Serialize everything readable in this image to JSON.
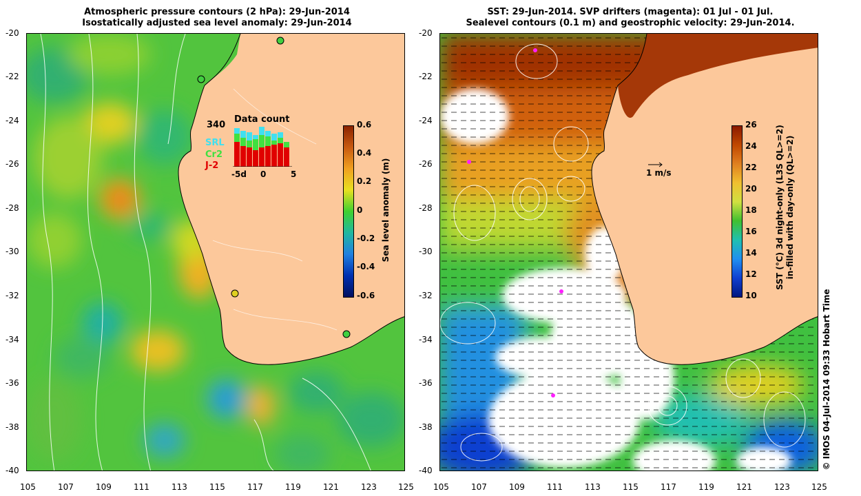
{
  "left_panel": {
    "title_line1": "Atmospheric pressure contours (2 hPa): 29-Jun-2014",
    "title_line2": "Isostatically adjusted sea level anomaly: 29-Jun-2014",
    "colorbar": {
      "label": "Sea level anomaly (m)",
      "ticks": [
        "0.6",
        "0.4",
        "0.2",
        "0",
        "-0.2",
        "-0.4",
        "-0.6"
      ],
      "colors": [
        "#8b2300",
        "#c85a10",
        "#f0a020",
        "#e8e020",
        "#40d030",
        "#20b8a0",
        "#2080e0",
        "#0030b0",
        "#001060"
      ]
    },
    "data_count": {
      "title": "Data count",
      "total": "340",
      "legend": [
        {
          "name": "SRL",
          "color": "#40e0f0"
        },
        {
          "name": "Cr2",
          "color": "#40e040"
        },
        {
          "name": "J-2",
          "color": "#e00000"
        }
      ],
      "x_ticks": [
        "-5d",
        "0",
        "5"
      ]
    }
  },
  "right_panel": {
    "title_line1": "SST: 29-Jun-2014. SVP drifters (magenta): 01 Jul - 01 Jul.",
    "title_line2": "Sealevel contours (0.1 m) and geostrophic velocity: 29-Jun-2014.",
    "colorbar": {
      "label_line1": "SST (°C) 3d night-only (L3S QL>=2)",
      "label_line2": "in-filled with day-only (QL>=2)",
      "ticks": [
        "26",
        "24",
        "22",
        "20",
        "18",
        "16",
        "14",
        "12",
        "10"
      ],
      "colors": [
        "#8b1a00",
        "#c04800",
        "#e08020",
        "#f0c030",
        "#d0e040",
        "#40c030",
        "#20c0b0",
        "#2090f0",
        "#1040d0",
        "#001880"
      ]
    },
    "velocity_scale": "1 m/s"
  },
  "axes": {
    "y_ticks": [
      "-20",
      "-22",
      "-24",
      "-26",
      "-28",
      "-30",
      "-32",
      "-34",
      "-36",
      "-38",
      "-40"
    ],
    "x_ticks": [
      "105",
      "107",
      "109",
      "111",
      "113",
      "115",
      "117",
      "119",
      "121",
      "123",
      "125"
    ]
  },
  "colors": {
    "land": "#fcc89b",
    "ocean_green": "#50c840",
    "coast": "#000000"
  },
  "copyright": "© IMOS 04-Jul-2014 09:33 Hobart Time"
}
